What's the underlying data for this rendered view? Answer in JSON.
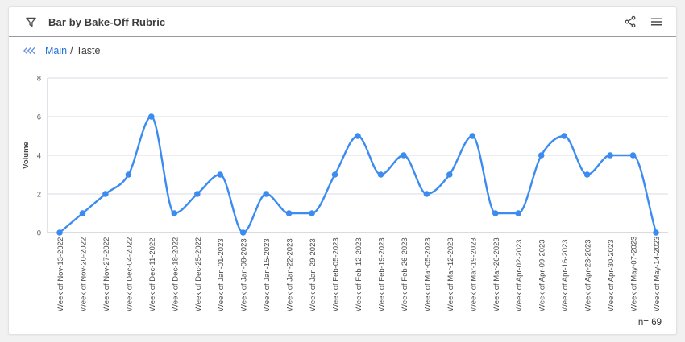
{
  "header": {
    "title": "Bar by Bake-Off Rubric",
    "filter_icon": "funnel-filter-icon",
    "share_icon": "share-nodes-icon",
    "menu_icon": "hamburger-menu-icon"
  },
  "breadcrumb": {
    "back_icon": "triple-chevron-left-icon",
    "root": "Main",
    "separator": "/",
    "current": "Taste"
  },
  "footer": {
    "n_label": "n= 69"
  },
  "colors": {
    "line": "#3b8bf1",
    "marker": "#3b8bf1",
    "grid": "#d9dae3",
    "axis": "#c3c5d0",
    "tick_text": "#5e5e5e",
    "xlabel_text": "#4a4a4a",
    "ylabel_text": "#4b4b4b"
  },
  "chart_data": {
    "type": "line",
    "curve": "monotone",
    "title": "",
    "xlabel": "",
    "ylabel": "Volume",
    "ylim": [
      0,
      8
    ],
    "yticks": [
      0,
      2,
      4,
      6,
      8
    ],
    "grid": true,
    "legend": false,
    "markers": true,
    "n": 69,
    "categories": [
      "Week of Nov-13-2022",
      "Week of Nov-20-2022",
      "Week of Nov-27-2022",
      "Week of Dec-04-2022",
      "Week of Dec-11-2022",
      "Week of Dec-18-2022",
      "Week of Dec-25-2022",
      "Week of Jan-01-2023",
      "Week of Jan-08-2023",
      "Week of Jan-15-2023",
      "Week of Jan-22-2023",
      "Week of Jan-29-2023",
      "Week of Feb-05-2023",
      "Week of Feb-12-2023",
      "Week of Feb-19-2023",
      "Week of Feb-26-2023",
      "Week of Mar-05-2023",
      "Week of Mar-12-2023",
      "Week of Mar-19-2023",
      "Week of Mar-26-2023",
      "Week of Apr-02-2023",
      "Week of Apr-09-2023",
      "Week of Apr-16-2023",
      "Week of Apr-23-2023",
      "Week of Apr-30-2023",
      "Week of May-07-2023",
      "Week of May-14-2023"
    ],
    "series": [
      {
        "name": "Volume",
        "values": [
          0,
          1,
          2,
          3,
          6,
          1,
          2,
          3,
          0,
          2,
          1,
          1,
          3,
          5,
          3,
          4,
          2,
          3,
          5,
          1,
          1,
          4,
          5,
          3,
          4,
          4,
          0
        ]
      }
    ]
  }
}
